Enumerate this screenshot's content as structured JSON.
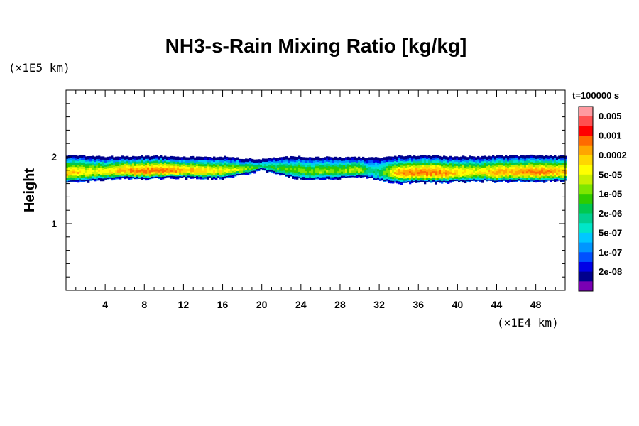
{
  "chart_data": {
    "type": "heatmap",
    "title": "NH3-s-Rain Mixing Ratio [kg/kg]",
    "xlabel": "",
    "ylabel": "Height",
    "x_unit": "(×1E4 km)",
    "y_unit": "(×1E5 km)",
    "time_label": "t=100000 s",
    "xlim": [
      0,
      51
    ],
    "ylim": [
      0,
      3
    ],
    "x_ticks": [
      4,
      8,
      12,
      16,
      20,
      24,
      28,
      32,
      36,
      40,
      44,
      48
    ],
    "x_tick_labels": [
      "4",
      "8",
      "12",
      "16",
      "20",
      "24",
      "28",
      "32",
      "36",
      "40",
      "44",
      "48"
    ],
    "y_ticks": [
      1,
      2
    ],
    "y_tick_labels": [
      "1",
      "2"
    ],
    "colorbar": {
      "levels": [
        "0.005",
        "0.001",
        "0.0002",
        "5e-05",
        "1e-05",
        "2e-06",
        "5e-07",
        "1e-07",
        "2e-08"
      ],
      "colors": [
        "#ff9aa0",
        "#ff5050",
        "#ff0000",
        "#ff6a00",
        "#ffa500",
        "#ffd700",
        "#ffff00",
        "#c8f000",
        "#7de600",
        "#2ecc00",
        "#00c850",
        "#00d090",
        "#00e6c8",
        "#00c8ff",
        "#0096ff",
        "#0050ff",
        "#0000e6",
        "#00008c",
        "#7a00b4"
      ]
    },
    "field": {
      "description_x": [
        0,
        2,
        4,
        6,
        8,
        10,
        12,
        14,
        16,
        18,
        20,
        22,
        24,
        26,
        28,
        30,
        31,
        32,
        33,
        34,
        36,
        38,
        40,
        42,
        44,
        46,
        48,
        50,
        51
      ],
      "layer_top": [
        2.01,
        2.0,
        1.99,
        1.99,
        2.0,
        2.0,
        1.99,
        1.98,
        1.99,
        1.96,
        1.95,
        1.98,
        1.99,
        1.98,
        1.98,
        1.98,
        1.97,
        1.97,
        1.99,
        2.0,
        2.0,
        2.0,
        1.99,
        1.99,
        2.0,
        2.0,
        2.01,
        2.0,
        2.0
      ],
      "layer_bottom": [
        1.63,
        1.65,
        1.67,
        1.69,
        1.68,
        1.7,
        1.7,
        1.69,
        1.69,
        1.74,
        1.82,
        1.74,
        1.68,
        1.68,
        1.7,
        1.71,
        1.7,
        1.66,
        1.64,
        1.62,
        1.63,
        1.63,
        1.64,
        1.65,
        1.64,
        1.65,
        1.64,
        1.65,
        1.65
      ],
      "peak_level_index": [
        4,
        6,
        6,
        4,
        3,
        3,
        4,
        5,
        6,
        7,
        10,
        9,
        8,
        8,
        8,
        7,
        11,
        10,
        7,
        4,
        3,
        3,
        5,
        6,
        4,
        4,
        3,
        4,
        4
      ]
    }
  }
}
